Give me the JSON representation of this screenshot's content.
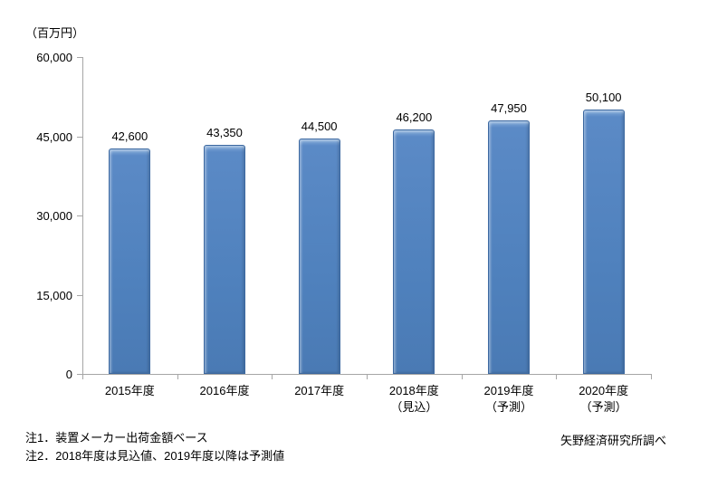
{
  "chart_data": {
    "type": "bar",
    "title": "",
    "unit_label": "（百万円）",
    "categories": [
      "2015年度",
      "2016年度",
      "2017年度",
      "2018年度\n（見込）",
      "2019年度\n（予測）",
      "2020年度\n（予測）"
    ],
    "values": [
      42600,
      43350,
      44500,
      46200,
      47950,
      50100
    ],
    "value_labels": [
      "42,600",
      "43,350",
      "44,500",
      "46,200",
      "47,950",
      "50,100"
    ],
    "xlabel": "",
    "ylabel": "百万円",
    "ylim": [
      0,
      60000
    ],
    "yticks": [
      0,
      15000,
      30000,
      45000,
      60000
    ],
    "ytick_labels": [
      "0",
      "15,000",
      "30,000",
      "45,000",
      "60,000"
    ],
    "grid": false,
    "legend": "none",
    "bar_color": "#4f81bd",
    "bar_border_color": "#3c68a0",
    "axis_color": "#a6a6a6"
  },
  "notes": {
    "line1": "注1．装置メーカー出荷金額ベース",
    "line2": "注2．2018年度は見込値、2019年度以降は予測値"
  },
  "source": "矢野経済研究所調べ"
}
